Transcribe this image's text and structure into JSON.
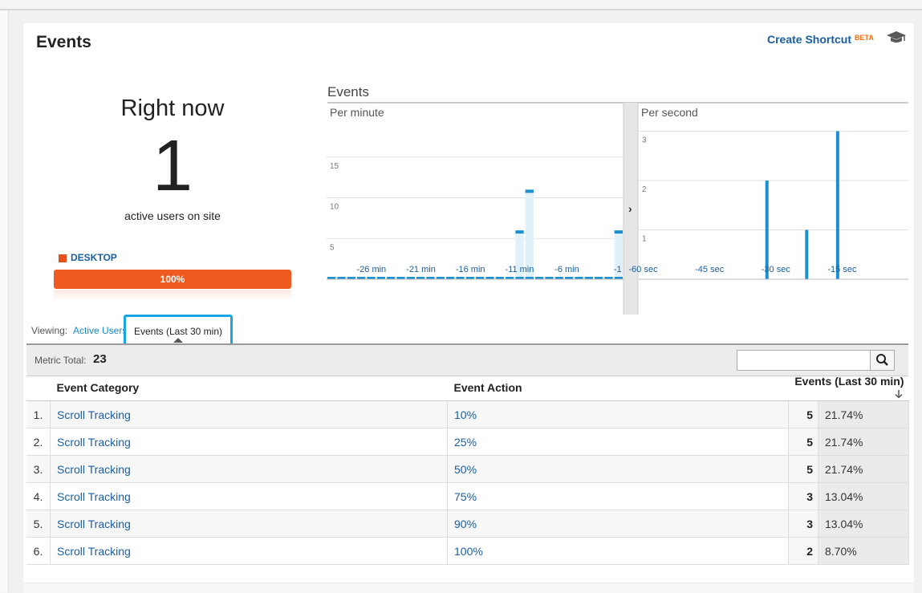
{
  "header": {
    "title": "Events",
    "shortcut_label": "Create Shortcut",
    "beta_label": "BETA",
    "cap_icon": "graduation-cap-icon"
  },
  "summary": {
    "right_now": "Right now",
    "active_count": "1",
    "active_label": "active users on site"
  },
  "device": {
    "label": "DESKTOP",
    "percent_label": "100%",
    "percent": 100,
    "color": "#ee5a1f"
  },
  "chart": {
    "title": "Events",
    "left_panel_label": "Per minute",
    "right_panel_label": "Per second",
    "bar_color": "#1a8fd1"
  },
  "chart_data": [
    {
      "type": "bar",
      "title": "Per minute",
      "ylim": [
        0,
        20
      ],
      "y_ticks": [
        "5",
        "10",
        "15"
      ],
      "x_tick_labels": [
        "-26 min",
        "-21 min",
        "-16 min",
        "-11 min",
        "-6 min",
        "-1"
      ],
      "x": [
        -30,
        -29,
        -28,
        -27,
        -26,
        -25,
        -24,
        -23,
        -22,
        -21,
        -20,
        -19,
        -18,
        -17,
        -16,
        -15,
        -14,
        -13,
        -12,
        -11,
        -10,
        -9,
        -8,
        -7,
        -6,
        -5,
        -4,
        -3,
        -2,
        -1
      ],
      "values": [
        0,
        0,
        0,
        0,
        0,
        0,
        0,
        0,
        0,
        0,
        0,
        0,
        0,
        0,
        0,
        0,
        0,
        0,
        0,
        6,
        11,
        0,
        0,
        0,
        0,
        0,
        0,
        0,
        0,
        6
      ]
    },
    {
      "type": "bar",
      "title": "Per second",
      "ylim": [
        0,
        3.3
      ],
      "y_ticks": [
        "1",
        "2",
        "3"
      ],
      "x_tick_labels": [
        "-60 sec",
        "-45 sec",
        "-30 sec",
        "-15 sec"
      ],
      "x": [
        -32,
        -23,
        -16
      ],
      "values": [
        2,
        1,
        3
      ]
    }
  ],
  "view": {
    "viewing_label": "Viewing:",
    "tab_active_users": "Active Users",
    "tab_events": "Events (Last 30 min)"
  },
  "table": {
    "metric_total_label": "Metric Total:",
    "metric_total_value": "23",
    "search_placeholder": "",
    "search_icon": "magnifier-icon",
    "columns": {
      "category": "Event Category",
      "action": "Event Action",
      "events": "Events (Last 30 min)"
    },
    "sort_icon": "arrow-down-icon",
    "rows": [
      {
        "index": "1.",
        "category": "Scroll Tracking",
        "action": "10%",
        "events": "5",
        "percent": "21.74%"
      },
      {
        "index": "2.",
        "category": "Scroll Tracking",
        "action": "25%",
        "events": "5",
        "percent": "21.74%"
      },
      {
        "index": "3.",
        "category": "Scroll Tracking",
        "action": "50%",
        "events": "5",
        "percent": "21.74%"
      },
      {
        "index": "4.",
        "category": "Scroll Tracking",
        "action": "75%",
        "events": "3",
        "percent": "13.04%"
      },
      {
        "index": "5.",
        "category": "Scroll Tracking",
        "action": "90%",
        "events": "3",
        "percent": "13.04%"
      },
      {
        "index": "6.",
        "category": "Scroll Tracking",
        "action": "100%",
        "events": "2",
        "percent": "8.70%"
      }
    ]
  }
}
